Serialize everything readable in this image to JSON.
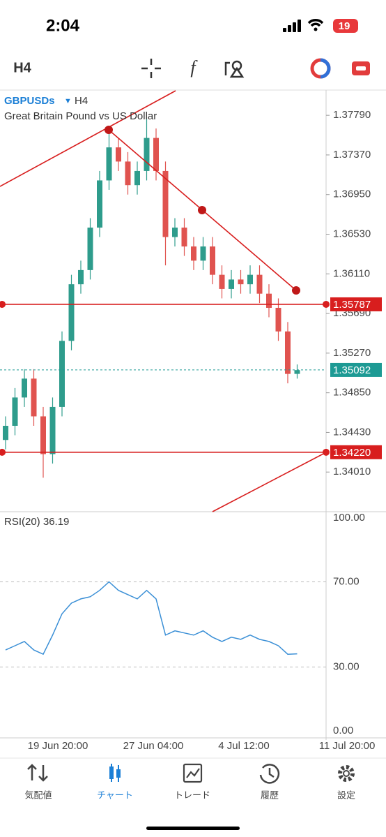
{
  "status_bar": {
    "time": "2:04",
    "battery": "19"
  },
  "toolbar": {
    "timeframe": "H4"
  },
  "chart_data": {
    "type": "candlestick",
    "symbol": "GBPUSDs",
    "symbol_timeframe": "H4",
    "subtitle": "Great Britain Pound vs US Dollar",
    "x_labels": [
      "19 Jun 20:00",
      "27 Jun 04:00",
      "4 Jul 12:00",
      "11 Jul 20:00"
    ],
    "open": [
      1.3435,
      1.345,
      1.348,
      1.35,
      1.346,
      1.342,
      1.347,
      1.354,
      1.36,
      1.3615,
      1.366,
      1.371,
      1.3745,
      1.373,
      1.3705,
      1.372,
      1.3755,
      1.372,
      1.365,
      1.366,
      1.364,
      1.3625,
      1.364,
      1.361,
      1.3595,
      1.3605,
      1.36,
      1.361,
      1.359,
      1.3575,
      1.355,
      1.3505
    ],
    "high": [
      1.346,
      1.349,
      1.351,
      1.351,
      1.347,
      1.348,
      1.355,
      1.361,
      1.3625,
      1.367,
      1.372,
      1.376,
      1.3755,
      1.374,
      1.373,
      1.3775,
      1.3765,
      1.373,
      1.367,
      1.367,
      1.365,
      1.365,
      1.365,
      1.362,
      1.3615,
      1.3615,
      1.362,
      1.362,
      1.36,
      1.3585,
      1.356,
      1.3515
    ],
    "low": [
      1.3425,
      1.344,
      1.347,
      1.345,
      1.3395,
      1.341,
      1.346,
      1.353,
      1.359,
      1.3605,
      1.365,
      1.37,
      1.372,
      1.3695,
      1.3695,
      1.371,
      1.371,
      1.362,
      1.364,
      1.363,
      1.3615,
      1.3615,
      1.36,
      1.3585,
      1.3585,
      1.359,
      1.359,
      1.358,
      1.3565,
      1.354,
      1.3495,
      1.35
    ],
    "close": [
      1.345,
      1.348,
      1.35,
      1.346,
      1.342,
      1.347,
      1.354,
      1.36,
      1.3615,
      1.366,
      1.371,
      1.3745,
      1.373,
      1.3705,
      1.372,
      1.3755,
      1.372,
      1.365,
      1.366,
      1.364,
      1.3625,
      1.364,
      1.361,
      1.3595,
      1.3605,
      1.36,
      1.361,
      1.359,
      1.3575,
      1.355,
      1.3505,
      1.3509
    ],
    "up_color": "#2e9c8c",
    "down_color": "#e0534f",
    "ylim": [
      1.3359,
      1.3805
    ],
    "yticks": [
      {
        "value": 1.3779,
        "label": "1.37790"
      },
      {
        "value": 1.3737,
        "label": "1.37370"
      },
      {
        "value": 1.3695,
        "label": "1.36950"
      },
      {
        "value": 1.3653,
        "label": "1.36530"
      },
      {
        "value": 1.3611,
        "label": "1.36110"
      },
      {
        "value": 1.3569,
        "label": "1.35690"
      },
      {
        "value": 1.3527,
        "label": "1.35270"
      },
      {
        "value": 1.3485,
        "label": "1.34850"
      },
      {
        "value": 1.3443,
        "label": "1.34430"
      },
      {
        "value": 1.3401,
        "label": "1.34010"
      }
    ],
    "levels": [
      {
        "value": 1.35787,
        "label": "1.35787",
        "color": "#d81e1e"
      },
      {
        "value": 1.3422,
        "label": "1.34220",
        "color": "#d81e1e"
      }
    ],
    "current": {
      "value": 1.35092,
      "label": "1.35092",
      "color": "#1d9a94"
    },
    "rsi": {
      "label": "RSI(20) 36.19",
      "color": "#3a8fd6",
      "values": [
        38,
        40,
        42,
        38,
        36,
        45,
        55,
        60,
        62,
        63,
        66,
        70,
        66,
        64,
        62,
        66,
        62,
        45,
        47,
        46,
        45,
        47,
        44,
        42,
        44,
        43,
        45,
        43,
        42,
        40,
        36,
        36.19
      ],
      "ylim": [
        0,
        100
      ],
      "yticks": [
        {
          "value": 100,
          "label": "100.00"
        },
        {
          "value": 70,
          "label": "70.00"
        },
        {
          "value": 30,
          "label": "30.00"
        },
        {
          "value": 0,
          "label": "0.00"
        }
      ]
    }
  },
  "tab_bar": {
    "tabs": [
      "気配値",
      "チャート",
      "トレード",
      "履歴",
      "設定"
    ]
  }
}
